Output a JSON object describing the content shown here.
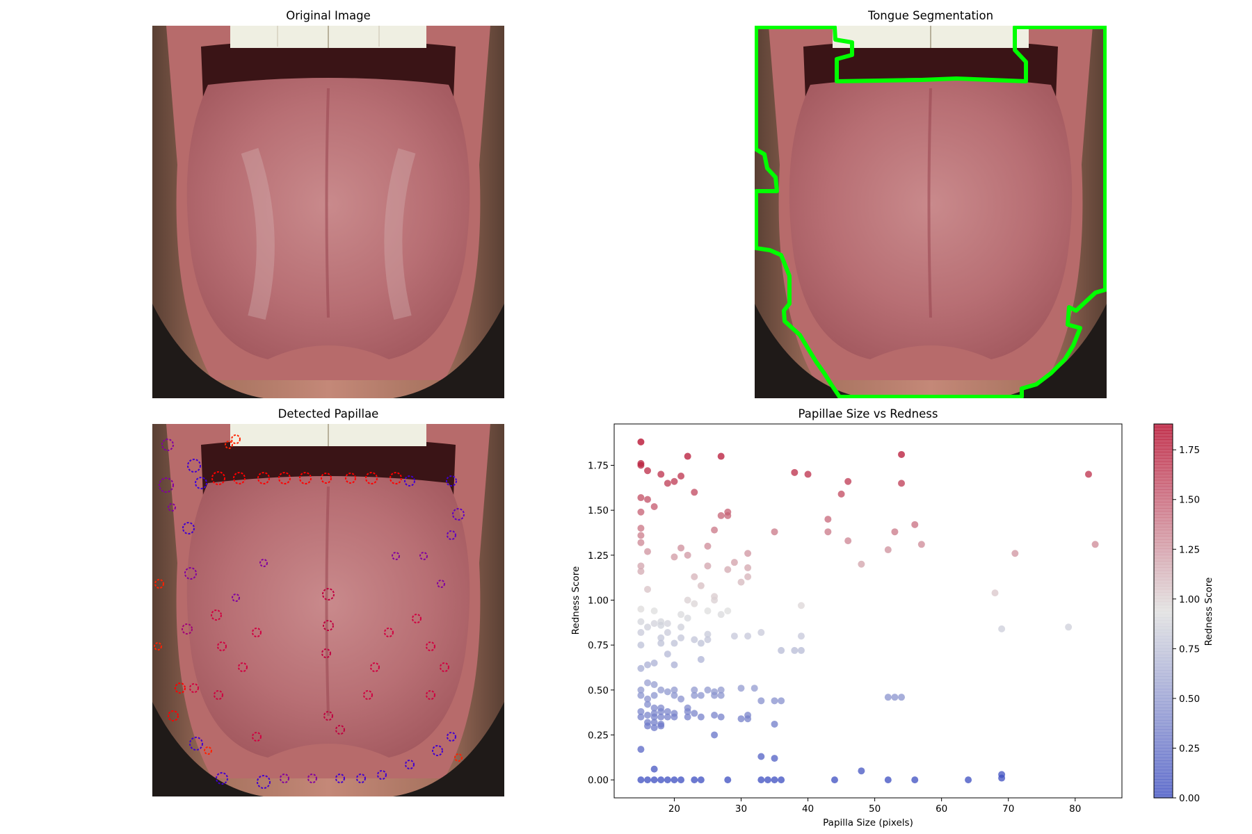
{
  "panels": {
    "original": {
      "title": "Original Image"
    },
    "segmentation": {
      "title": "Tongue Segmentation",
      "outline_color": "#00ff00"
    },
    "papillae": {
      "title": "Detected Papillae"
    },
    "scatter": {
      "title": "Papillae Size vs Redness"
    }
  },
  "chart_data": {
    "type": "scatter",
    "title": "Papillae Size vs Redness",
    "xlabel": "Papilla Size (pixels)",
    "ylabel": "Redness Score",
    "xlim": [
      11,
      87
    ],
    "ylim": [
      -0.1,
      1.98
    ],
    "xticks": [
      20,
      30,
      40,
      50,
      60,
      70,
      80
    ],
    "yticks": [
      0.0,
      0.25,
      0.5,
      0.75,
      1.0,
      1.25,
      1.5,
      1.75
    ],
    "colormap": "coolwarm",
    "colorbar": {
      "label": "Redness Score",
      "range": [
        0.0,
        1.88
      ],
      "ticks": [
        0.0,
        0.25,
        0.5,
        0.75,
        1.0,
        1.25,
        1.5,
        1.75
      ],
      "low_color": "#3b4cc0",
      "mid_color": "#dddddd",
      "high_color": "#b40426"
    },
    "grid": false,
    "points": [
      {
        "x": 15,
        "y": 1.88
      },
      {
        "x": 15,
        "y": 1.76
      },
      {
        "x": 15,
        "y": 1.75
      },
      {
        "x": 16,
        "y": 1.72
      },
      {
        "x": 18,
        "y": 1.7
      },
      {
        "x": 19,
        "y": 1.65
      },
      {
        "x": 20,
        "y": 1.66
      },
      {
        "x": 21,
        "y": 1.69
      },
      {
        "x": 22,
        "y": 1.8
      },
      {
        "x": 23,
        "y": 1.6
      },
      {
        "x": 27,
        "y": 1.8
      },
      {
        "x": 38,
        "y": 1.71
      },
      {
        "x": 40,
        "y": 1.7
      },
      {
        "x": 54,
        "y": 1.81
      },
      {
        "x": 54,
        "y": 1.65
      },
      {
        "x": 82,
        "y": 1.7
      },
      {
        "x": 45,
        "y": 1.59
      },
      {
        "x": 46,
        "y": 1.66
      },
      {
        "x": 15,
        "y": 1.57
      },
      {
        "x": 16,
        "y": 1.56
      },
      {
        "x": 17,
        "y": 1.52
      },
      {
        "x": 15,
        "y": 1.49
      },
      {
        "x": 28,
        "y": 1.49
      },
      {
        "x": 28,
        "y": 1.47
      },
      {
        "x": 27,
        "y": 1.47
      },
      {
        "x": 43,
        "y": 1.45
      },
      {
        "x": 56,
        "y": 1.42
      },
      {
        "x": 15,
        "y": 1.4
      },
      {
        "x": 26,
        "y": 1.39
      },
      {
        "x": 35,
        "y": 1.38
      },
      {
        "x": 43,
        "y": 1.38
      },
      {
        "x": 53,
        "y": 1.38
      },
      {
        "x": 15,
        "y": 1.36
      },
      {
        "x": 15,
        "y": 1.32
      },
      {
        "x": 46,
        "y": 1.33
      },
      {
        "x": 57,
        "y": 1.31
      },
      {
        "x": 83,
        "y": 1.31
      },
      {
        "x": 25,
        "y": 1.3
      },
      {
        "x": 21,
        "y": 1.29
      },
      {
        "x": 52,
        "y": 1.28
      },
      {
        "x": 16,
        "y": 1.27
      },
      {
        "x": 22,
        "y": 1.25
      },
      {
        "x": 31,
        "y": 1.26
      },
      {
        "x": 71,
        "y": 1.26
      },
      {
        "x": 20,
        "y": 1.24
      },
      {
        "x": 29,
        "y": 1.21
      },
      {
        "x": 48,
        "y": 1.2
      },
      {
        "x": 15,
        "y": 1.19
      },
      {
        "x": 25,
        "y": 1.19
      },
      {
        "x": 31,
        "y": 1.18
      },
      {
        "x": 28,
        "y": 1.17
      },
      {
        "x": 15,
        "y": 1.16
      },
      {
        "x": 23,
        "y": 1.13
      },
      {
        "x": 31,
        "y": 1.13
      },
      {
        "x": 30,
        "y": 1.1
      },
      {
        "x": 24,
        "y": 1.08
      },
      {
        "x": 16,
        "y": 1.06
      },
      {
        "x": 68,
        "y": 1.04
      },
      {
        "x": 26,
        "y": 1.02
      },
      {
        "x": 22,
        "y": 1.0
      },
      {
        "x": 26,
        "y": 1.0
      },
      {
        "x": 23,
        "y": 0.98
      },
      {
        "x": 39,
        "y": 0.97
      },
      {
        "x": 15,
        "y": 0.95
      },
      {
        "x": 17,
        "y": 0.94
      },
      {
        "x": 25,
        "y": 0.94
      },
      {
        "x": 28,
        "y": 0.94
      },
      {
        "x": 21,
        "y": 0.92
      },
      {
        "x": 27,
        "y": 0.92
      },
      {
        "x": 22,
        "y": 0.9
      },
      {
        "x": 15,
        "y": 0.88
      },
      {
        "x": 18,
        "y": 0.88
      },
      {
        "x": 17,
        "y": 0.87
      },
      {
        "x": 18,
        "y": 0.86
      },
      {
        "x": 19,
        "y": 0.87
      },
      {
        "x": 16,
        "y": 0.85
      },
      {
        "x": 21,
        "y": 0.85
      },
      {
        "x": 69,
        "y": 0.84
      },
      {
        "x": 79,
        "y": 0.85
      },
      {
        "x": 15,
        "y": 0.82
      },
      {
        "x": 19,
        "y": 0.82
      },
      {
        "x": 33,
        "y": 0.82
      },
      {
        "x": 25,
        "y": 0.81
      },
      {
        "x": 29,
        "y": 0.8
      },
      {
        "x": 31,
        "y": 0.8
      },
      {
        "x": 39,
        "y": 0.8
      },
      {
        "x": 18,
        "y": 0.79
      },
      {
        "x": 21,
        "y": 0.79
      },
      {
        "x": 23,
        "y": 0.78
      },
      {
        "x": 25,
        "y": 0.78
      },
      {
        "x": 15,
        "y": 0.75
      },
      {
        "x": 18,
        "y": 0.76
      },
      {
        "x": 20,
        "y": 0.76
      },
      {
        "x": 24,
        "y": 0.76
      },
      {
        "x": 36,
        "y": 0.72
      },
      {
        "x": 38,
        "y": 0.72
      },
      {
        "x": 39,
        "y": 0.72
      },
      {
        "x": 19,
        "y": 0.7
      },
      {
        "x": 24,
        "y": 0.67
      },
      {
        "x": 16,
        "y": 0.64
      },
      {
        "x": 17,
        "y": 0.65
      },
      {
        "x": 20,
        "y": 0.64
      },
      {
        "x": 15,
        "y": 0.62
      },
      {
        "x": 16,
        "y": 0.54
      },
      {
        "x": 17,
        "y": 0.53
      },
      {
        "x": 15,
        "y": 0.5
      },
      {
        "x": 18,
        "y": 0.5
      },
      {
        "x": 19,
        "y": 0.49
      },
      {
        "x": 20,
        "y": 0.5
      },
      {
        "x": 23,
        "y": 0.5
      },
      {
        "x": 25,
        "y": 0.5
      },
      {
        "x": 26,
        "y": 0.49
      },
      {
        "x": 27,
        "y": 0.5
      },
      {
        "x": 30,
        "y": 0.51
      },
      {
        "x": 32,
        "y": 0.51
      },
      {
        "x": 15,
        "y": 0.47
      },
      {
        "x": 17,
        "y": 0.47
      },
      {
        "x": 20,
        "y": 0.47
      },
      {
        "x": 23,
        "y": 0.47
      },
      {
        "x": 24,
        "y": 0.47
      },
      {
        "x": 26,
        "y": 0.47
      },
      {
        "x": 27,
        "y": 0.47
      },
      {
        "x": 16,
        "y": 0.45
      },
      {
        "x": 21,
        "y": 0.45
      },
      {
        "x": 33,
        "y": 0.44
      },
      {
        "x": 35,
        "y": 0.44
      },
      {
        "x": 36,
        "y": 0.44
      },
      {
        "x": 52,
        "y": 0.46
      },
      {
        "x": 53,
        "y": 0.46
      },
      {
        "x": 54,
        "y": 0.46
      },
      {
        "x": 16,
        "y": 0.42
      },
      {
        "x": 17,
        "y": 0.4
      },
      {
        "x": 18,
        "y": 0.4
      },
      {
        "x": 22,
        "y": 0.4
      },
      {
        "x": 15,
        "y": 0.38
      },
      {
        "x": 17,
        "y": 0.37
      },
      {
        "x": 18,
        "y": 0.38
      },
      {
        "x": 19,
        "y": 0.38
      },
      {
        "x": 20,
        "y": 0.37
      },
      {
        "x": 22,
        "y": 0.38
      },
      {
        "x": 23,
        "y": 0.37
      },
      {
        "x": 15,
        "y": 0.35
      },
      {
        "x": 16,
        "y": 0.36
      },
      {
        "x": 17,
        "y": 0.35
      },
      {
        "x": 18,
        "y": 0.35
      },
      {
        "x": 19,
        "y": 0.35
      },
      {
        "x": 20,
        "y": 0.35
      },
      {
        "x": 22,
        "y": 0.35
      },
      {
        "x": 24,
        "y": 0.35
      },
      {
        "x": 26,
        "y": 0.36
      },
      {
        "x": 27,
        "y": 0.35
      },
      {
        "x": 30,
        "y": 0.34
      },
      {
        "x": 31,
        "y": 0.36
      },
      {
        "x": 31,
        "y": 0.34
      },
      {
        "x": 16,
        "y": 0.32
      },
      {
        "x": 17,
        "y": 0.32
      },
      {
        "x": 18,
        "y": 0.31
      },
      {
        "x": 16,
        "y": 0.3
      },
      {
        "x": 17,
        "y": 0.29
      },
      {
        "x": 18,
        "y": 0.3
      },
      {
        "x": 35,
        "y": 0.31
      },
      {
        "x": 26,
        "y": 0.25
      },
      {
        "x": 15,
        "y": 0.17
      },
      {
        "x": 33,
        "y": 0.13
      },
      {
        "x": 35,
        "y": 0.12
      },
      {
        "x": 17,
        "y": 0.06
      },
      {
        "x": 48,
        "y": 0.05
      },
      {
        "x": 69,
        "y": 0.03
      },
      {
        "x": 69,
        "y": 0.01
      },
      {
        "x": 15,
        "y": 0.0
      },
      {
        "x": 16,
        "y": 0.0
      },
      {
        "x": 17,
        "y": 0.0
      },
      {
        "x": 18,
        "y": 0.0
      },
      {
        "x": 19,
        "y": 0.0
      },
      {
        "x": 20,
        "y": 0.0
      },
      {
        "x": 21,
        "y": 0.0
      },
      {
        "x": 23,
        "y": 0.0
      },
      {
        "x": 24,
        "y": 0.0
      },
      {
        "x": 28,
        "y": 0.0
      },
      {
        "x": 33,
        "y": 0.0
      },
      {
        "x": 34,
        "y": 0.0
      },
      {
        "x": 35,
        "y": 0.0
      },
      {
        "x": 36,
        "y": 0.0
      },
      {
        "x": 44,
        "y": 0.0
      },
      {
        "x": 52,
        "y": 0.0
      },
      {
        "x": 56,
        "y": 0.0
      },
      {
        "x": 64,
        "y": 0.0
      }
    ]
  }
}
